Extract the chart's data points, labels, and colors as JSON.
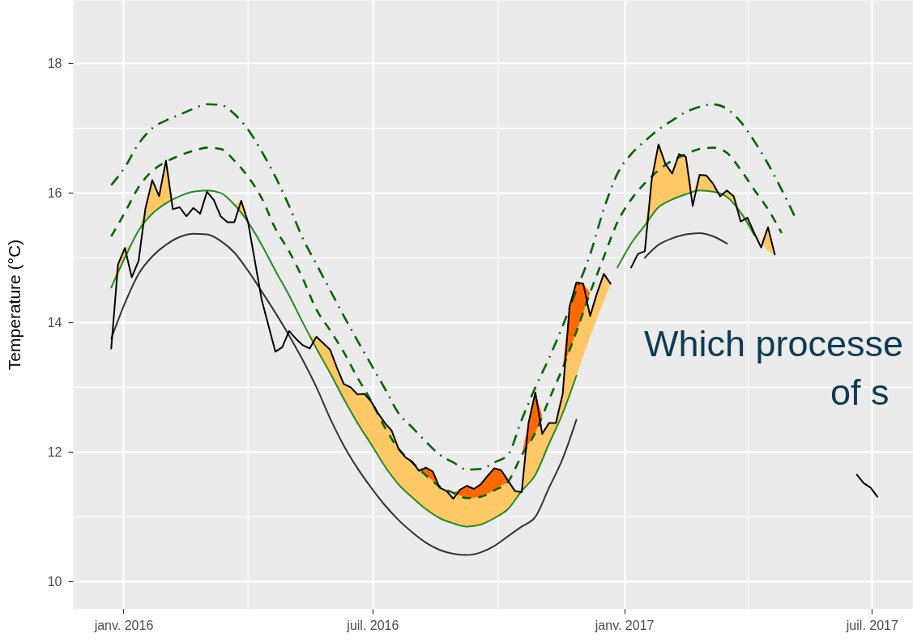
{
  "chart_data": {
    "type": "line",
    "ylabel": "Temperature (°C)",
    "xlim": [
      "2015-11-25",
      "2017-07-31"
    ],
    "ylim": [
      9.58,
      18.98
    ],
    "xticks": [
      {
        "value": "2016-01-01",
        "label": "janv. 2016"
      },
      {
        "value": "2016-07-01",
        "label": "juil. 2016"
      },
      {
        "value": "2017-01-01",
        "label": "janv. 2017"
      },
      {
        "value": "2017-07-01",
        "label": "juil. 2017"
      }
    ],
    "yticks": [
      10,
      12,
      14,
      16,
      18
    ],
    "grid": true,
    "annotations": [
      "Which processe",
      "of s"
    ],
    "x": [
      "2015-12-23",
      "2015-12-28",
      "2016-01-02",
      "2016-01-07",
      "2016-01-12",
      "2016-01-17",
      "2016-01-22",
      "2016-01-27",
      "2016-02-01",
      "2016-02-06",
      "2016-02-11",
      "2016-02-16",
      "2016-02-21",
      "2016-02-26",
      "2016-03-02",
      "2016-03-07",
      "2016-03-12",
      "2016-03-17",
      "2016-03-22",
      "2016-03-27",
      "2016-04-01",
      "2016-04-06",
      "2016-04-11",
      "2016-04-16",
      "2016-04-21",
      "2016-04-26",
      "2016-05-01",
      "2016-05-06",
      "2016-05-11",
      "2016-05-16",
      "2016-05-21",
      "2016-05-26",
      "2016-05-31",
      "2016-06-05",
      "2016-06-10",
      "2016-06-15",
      "2016-06-20",
      "2016-06-25",
      "2016-06-30",
      "2016-07-05",
      "2016-07-10",
      "2016-07-15",
      "2016-07-20",
      "2016-07-25",
      "2016-07-30",
      "2016-08-04",
      "2016-08-09",
      "2016-08-14",
      "2016-08-19",
      "2016-08-24",
      "2016-08-29",
      "2016-09-03",
      "2016-09-08",
      "2016-09-13",
      "2016-09-18",
      "2016-09-23",
      "2016-09-28",
      "2016-10-03",
      "2016-10-08",
      "2016-10-13",
      "2016-10-18",
      "2016-10-23",
      "2016-10-28",
      "2016-11-02",
      "2016-11-07",
      "2016-11-12",
      "2016-11-17",
      "2016-11-22",
      "2016-11-27",
      "2016-12-02",
      "2016-12-07",
      "2016-12-12",
      "2016-12-17",
      "2016-12-22",
      "2016-12-27",
      "2017-01-01",
      "2017-01-06",
      "2017-01-11",
      "2017-01-16",
      "2017-01-21",
      "2017-01-26",
      "2017-01-31",
      "2017-02-05",
      "2017-02-10",
      "2017-02-15",
      "2017-02-20",
      "2017-02-25",
      "2017-03-02",
      "2017-03-07",
      "2017-03-12",
      "2017-03-17",
      "2017-03-22",
      "2017-03-27",
      "2017-04-01",
      "2017-04-06",
      "2017-04-11",
      "2017-04-16",
      "2017-04-21",
      "2017-04-26",
      "2017-05-01",
      "2017-05-06",
      "2017-05-11",
      "2017-05-16",
      "2017-05-21",
      "2017-05-26",
      "2017-05-31",
      "2017-06-05",
      "2017-06-10",
      "2017-06-15",
      "2017-06-20",
      "2017-06-25",
      "2017-06-30",
      "2017-07-05"
    ],
    "series": [
      {
        "type": "area",
        "color": "#ffc866",
        "values": [
          null,
          null,
          null,
          null,
          null,
          null,
          null,
          null,
          null,
          null,
          null,
          null,
          null,
          null,
          null,
          null,
          null,
          null,
          null,
          null,
          null,
          null,
          null,
          null,
          null,
          null,
          null,
          null,
          null,
          null,
          null,
          null,
          null,
          null,
          null,
          null,
          null,
          null,
          null,
          null,
          null,
          null,
          null,
          null,
          null,
          null,
          null,
          null,
          null,
          null,
          null,
          null,
          null,
          null,
          null,
          null,
          null,
          null,
          null,
          null,
          null,
          null,
          null,
          null,
          null,
          null,
          null,
          null,
          null,
          null,
          null,
          null,
          null,
          null,
          null,
          null,
          null,
          null,
          null,
          null,
          null,
          null,
          null,
          null,
          null,
          null,
          null,
          null,
          null,
          null,
          null,
          null,
          null,
          null,
          null,
          null,
          null,
          null,
          null,
          null,
          null,
          null,
          null,
          null,
          null,
          null,
          null,
          null,
          null,
          null,
          null,
          null,
          null
        ],
        "upper": [
          14.54,
          14.9,
          15.15,
          15.21,
          15.42,
          15.76,
          16.2,
          15.95,
          16.5,
          15.9,
          null,
          null,
          null,
          null,
          null,
          null,
          null,
          null,
          15.82,
          15.88,
          15.55,
          null,
          null,
          null,
          null,
          null,
          null,
          null,
          null,
          13.8,
          13.78,
          13.68,
          13.58,
          13.3,
          13.05,
          13.0,
          12.89,
          12.9,
          12.78,
          12.6,
          12.45,
          12.33,
          12.05,
          11.92,
          11.85,
          11.71,
          11.76,
          11.7,
          11.45,
          11.4,
          11.28,
          11.42,
          11.48,
          11.43,
          11.5,
          11.63,
          11.75,
          11.72,
          11.56,
          11.4,
          11.4,
          12.45,
          12.92,
          12.28,
          12.45,
          12.45,
          12.9,
          14.25,
          14.62,
          14.6,
          14.1,
          14.45,
          14.75,
          14.6,
          null,
          null,
          null,
          null,
          15.5,
          16.2,
          16.75,
          16.45,
          16.3,
          16.6,
          16.56,
          16.01,
          16.28,
          16.27,
          16.14,
          15.98,
          16.04,
          15.95,
          15.7,
          15.62,
          15.38,
          15.25,
          15.47,
          15.05,
          null,
          null,
          null,
          null,
          null,
          null,
          null,
          null,
          null,
          null,
          null,
          null,
          null,
          null,
          null
        ],
        "lower": [
          14.54,
          14.77,
          15.0,
          15.21,
          15.42,
          15.55,
          15.68,
          15.76,
          15.84,
          15.9,
          null,
          null,
          null,
          null,
          null,
          null,
          null,
          null,
          15.82,
          15.69,
          15.55,
          null,
          null,
          null,
          null,
          null,
          null,
          null,
          null,
          13.8,
          13.6,
          13.41,
          13.22,
          13.02,
          12.82,
          12.64,
          12.45,
          12.29,
          12.12,
          11.95,
          11.78,
          11.64,
          11.5,
          11.4,
          11.3,
          11.21,
          11.12,
          11.05,
          10.98,
          10.94,
          10.9,
          10.88,
          10.85,
          10.87,
          10.88,
          10.93,
          10.98,
          11.05,
          11.12,
          11.26,
          11.4,
          11.53,
          11.65,
          11.89,
          12.13,
          12.37,
          12.6,
          12.89,
          13.18,
          13.48,
          13.78,
          14.05,
          14.33,
          14.59,
          null,
          null,
          null,
          null,
          15.5,
          15.64,
          15.78,
          15.84,
          15.9,
          15.94,
          15.98,
          16.01,
          16.04,
          16.03,
          16.02,
          15.98,
          15.94,
          15.82,
          15.7,
          15.53,
          15.35,
          15.25,
          15.1,
          15.05,
          null,
          null,
          null,
          null,
          null,
          null,
          null,
          null,
          null,
          null,
          null,
          null,
          null,
          null,
          null
        ]
      },
      {
        "type": "area",
        "color": "#ff6900",
        "values": [
          null,
          null,
          null,
          null,
          null,
          null,
          null,
          null,
          null,
          null,
          null,
          null,
          null,
          null,
          null,
          null,
          null,
          null,
          null,
          null,
          null,
          null,
          null,
          null,
          null,
          null,
          null,
          null,
          null,
          null,
          null,
          null,
          null,
          null,
          null,
          null,
          null,
          null,
          null,
          null,
          null,
          null,
          null,
          null,
          null,
          null,
          null,
          null,
          null,
          null,
          null,
          null,
          null,
          null,
          null,
          null,
          null,
          null,
          null,
          null,
          null,
          null,
          null,
          null,
          null,
          null,
          null,
          null,
          null,
          null,
          null,
          null,
          null,
          null,
          null,
          null,
          null,
          null,
          null,
          null,
          null,
          null,
          null,
          null,
          null,
          null,
          null,
          null,
          null,
          null,
          null,
          null,
          null,
          null,
          null,
          null,
          null,
          null,
          null,
          null,
          null,
          null,
          null,
          null,
          null,
          null,
          null,
          null,
          null,
          null,
          null,
          null,
          null
        ],
        "upper": [
          null,
          null,
          null,
          null,
          null,
          null,
          null,
          null,
          null,
          null,
          null,
          null,
          null,
          null,
          null,
          null,
          null,
          null,
          null,
          null,
          null,
          null,
          null,
          null,
          null,
          null,
          null,
          null,
          null,
          null,
          null,
          null,
          null,
          null,
          null,
          null,
          null,
          null,
          null,
          null,
          null,
          null,
          null,
          null,
          null,
          11.74,
          11.76,
          11.7,
          11.47,
          null,
          11.37,
          11.42,
          11.48,
          11.43,
          11.5,
          11.63,
          11.75,
          11.72,
          11.56,
          11.75,
          11.95,
          12.45,
          12.92,
          12.56,
          null,
          null,
          13.3,
          14.25,
          14.62,
          14.6,
          14.46,
          null,
          null,
          null,
          null,
          null,
          null,
          null,
          null,
          null,
          null,
          null,
          null,
          null,
          null,
          null,
          null,
          null,
          null,
          null,
          null,
          null,
          null,
          null,
          null,
          null,
          null,
          null,
          null,
          null,
          null,
          null,
          null,
          null,
          null,
          null,
          null,
          null,
          null,
          null,
          null,
          null,
          null
        ],
        "lower": [
          null,
          null,
          null,
          null,
          null,
          null,
          null,
          null,
          null,
          null,
          null,
          null,
          null,
          null,
          null,
          null,
          null,
          null,
          null,
          null,
          null,
          null,
          null,
          null,
          null,
          null,
          null,
          null,
          null,
          null,
          null,
          null,
          null,
          null,
          null,
          null,
          null,
          null,
          null,
          null,
          null,
          null,
          null,
          null,
          null,
          11.74,
          11.64,
          11.56,
          11.47,
          null,
          11.37,
          11.33,
          11.29,
          11.3,
          11.31,
          11.36,
          11.41,
          11.48,
          11.54,
          11.75,
          11.95,
          12.13,
          12.3,
          12.56,
          null,
          null,
          13.3,
          13.58,
          13.86,
          14.16,
          14.46,
          null,
          null,
          null,
          null,
          null,
          null,
          null,
          null,
          null,
          null,
          null,
          null,
          null,
          null,
          null,
          null,
          null,
          null,
          null,
          null,
          null,
          null,
          null,
          null,
          null,
          null,
          null,
          null,
          null,
          null,
          null,
          null,
          null,
          null,
          null,
          null,
          null,
          null,
          null,
          null,
          null,
          null
        ]
      },
      {
        "color": "#333333",
        "x": [
          "2015-12-23",
          "2016-01-02",
          "2016-01-12",
          "2016-01-22",
          "2016-02-01",
          "2016-02-11",
          "2016-02-21",
          "2016-03-02",
          "2016-03-12",
          "2016-03-22",
          "2016-04-01",
          "2016-04-11",
          "2016-04-21",
          "2016-05-01",
          "2016-05-11",
          "2016-05-21",
          "2016-05-31",
          "2016-06-10",
          "2016-06-20",
          "2016-06-30",
          "2016-07-10",
          "2016-07-20",
          "2016-07-30",
          "2016-08-09",
          "2016-08-19",
          "2016-08-29",
          "2016-09-08",
          "2016-09-18",
          "2016-09-28",
          "2016-10-08",
          "2016-10-18",
          "2016-10-28",
          "2016-11-07",
          "2016-11-17",
          "2016-11-27",
          "2016-12-07",
          "2016-12-17",
          "2016-12-27",
          "2017-01-06",
          "2017-01-16",
          "2017-01-26",
          "2017-02-05",
          "2017-02-15",
          "2017-02-25",
          "2017-03-07",
          "2017-03-17"
        ],
        "values": [
          13.75,
          14.3,
          14.75,
          15.02,
          15.2,
          15.32,
          15.37,
          15.36,
          15.26,
          15.08,
          14.8,
          14.48,
          14.15,
          13.8,
          13.42,
          13.0,
          12.52,
          12.1,
          11.75,
          11.45,
          11.18,
          10.95,
          10.76,
          10.6,
          10.49,
          10.43,
          10.41,
          10.45,
          10.55,
          10.7,
          10.85,
          11.0,
          11.45,
          11.9,
          12.5,
          null,
          null,
          null,
          null,
          15.0,
          15.2,
          15.3,
          15.36,
          15.38,
          15.33,
          15.22
        ]
      },
      {
        "color": "#228b22",
        "x": [
          "2015-12-23",
          "2016-01-02",
          "2016-01-12",
          "2016-01-22",
          "2016-02-01",
          "2016-02-11",
          "2016-02-21",
          "2016-03-02",
          "2016-03-12",
          "2016-03-22",
          "2016-04-01",
          "2016-04-11",
          "2016-04-21",
          "2016-05-01",
          "2016-05-11",
          "2016-05-21",
          "2016-05-31",
          "2016-06-10",
          "2016-06-20",
          "2016-06-30",
          "2016-07-10",
          "2016-07-20",
          "2016-07-30",
          "2016-08-09",
          "2016-08-19",
          "2016-08-29",
          "2016-09-08",
          "2016-09-18",
          "2016-09-28",
          "2016-10-08",
          "2016-10-18",
          "2016-10-28",
          "2016-11-07",
          "2016-11-17",
          "2016-11-27",
          "2016-12-07",
          "2016-12-17",
          "2016-12-27",
          "2017-01-06",
          "2017-01-16",
          "2017-01-26",
          "2017-02-05",
          "2017-02-15",
          "2017-02-25",
          "2017-03-07",
          "2017-03-17",
          "2017-03-27",
          "2017-04-06"
        ],
        "values": [
          14.54,
          15.0,
          15.42,
          15.68,
          15.84,
          15.95,
          16.02,
          16.04,
          16.0,
          15.82,
          15.55,
          15.2,
          14.8,
          14.42,
          14.0,
          13.6,
          13.22,
          12.82,
          12.45,
          12.12,
          11.78,
          11.5,
          11.3,
          11.12,
          10.98,
          10.9,
          10.85,
          10.88,
          10.98,
          11.12,
          11.4,
          11.65,
          12.13,
          12.6,
          13.18,
          null,
          null,
          14.85,
          15.22,
          15.5,
          15.78,
          15.9,
          15.98,
          16.04,
          16.02,
          15.94,
          15.7,
          15.35
        ]
      },
      {
        "color": "#006400",
        "line_style": "dashed",
        "x": [
          "2015-12-23",
          "2016-01-02",
          "2016-01-12",
          "2016-01-22",
          "2016-02-01",
          "2016-02-11",
          "2016-02-21",
          "2016-03-02",
          "2016-03-12",
          "2016-03-22",
          "2016-04-01",
          "2016-04-11",
          "2016-04-21",
          "2016-05-01",
          "2016-05-11",
          "2016-05-21",
          "2016-05-31",
          "2016-06-10",
          "2016-06-20",
          "2016-06-30",
          "2016-07-10",
          "2016-07-20",
          "2016-07-30",
          "2016-08-09",
          "2016-08-19",
          "2016-08-29",
          "2016-09-08",
          "2016-09-18",
          "2016-09-28",
          "2016-10-08",
          "2016-10-18",
          "2016-10-28",
          "2016-11-07",
          "2016-11-17",
          "2016-11-27",
          "2016-12-07",
          "2016-12-17",
          "2016-12-27",
          "2017-01-06",
          "2017-01-16",
          "2017-01-26",
          "2017-02-05",
          "2017-02-15",
          "2017-02-25",
          "2017-03-07",
          "2017-03-17",
          "2017-03-27",
          "2017-04-06",
          "2017-04-16",
          "2017-04-26"
        ],
        "values": [
          15.33,
          15.7,
          16.09,
          16.34,
          16.48,
          16.58,
          16.65,
          16.7,
          16.68,
          16.5,
          16.25,
          15.92,
          15.45,
          15.1,
          14.68,
          14.2,
          13.88,
          13.54,
          13.15,
          12.79,
          12.38,
          12.05,
          11.84,
          11.64,
          11.47,
          11.37,
          11.29,
          11.31,
          11.41,
          11.54,
          11.95,
          12.3,
          12.81,
          13.3,
          13.86,
          14.46,
          15.01,
          15.55,
          15.9,
          16.15,
          16.35,
          16.5,
          16.6,
          16.68,
          16.7,
          16.62,
          16.36,
          16.05,
          15.75,
          15.38
        ]
      },
      {
        "color": "#006400",
        "line_style": "dashdot",
        "x": [
          "2015-12-23",
          "2016-01-02",
          "2016-01-12",
          "2016-01-22",
          "2016-02-01",
          "2016-02-11",
          "2016-02-21",
          "2016-03-02",
          "2016-03-12",
          "2016-03-22",
          "2016-04-01",
          "2016-04-11",
          "2016-04-21",
          "2016-05-01",
          "2016-05-11",
          "2016-05-21",
          "2016-05-31",
          "2016-06-10",
          "2016-06-20",
          "2016-06-30",
          "2016-07-10",
          "2016-07-20",
          "2016-07-30",
          "2016-08-09",
          "2016-08-19",
          "2016-08-29",
          "2016-09-08",
          "2016-09-18",
          "2016-09-28",
          "2016-10-08",
          "2016-10-18",
          "2016-10-28",
          "2016-11-07",
          "2016-11-17",
          "2016-11-27",
          "2016-12-07",
          "2016-12-17",
          "2016-12-27",
          "2017-01-06",
          "2017-01-16",
          "2017-01-26",
          "2017-02-05",
          "2017-02-15",
          "2017-02-25",
          "2017-03-07",
          "2017-03-17",
          "2017-03-27",
          "2017-04-06",
          "2017-04-16",
          "2017-04-26",
          "2017-05-06"
        ],
        "values": [
          16.12,
          16.4,
          16.76,
          17.0,
          17.12,
          17.21,
          17.3,
          17.37,
          17.36,
          17.22,
          16.98,
          16.64,
          16.25,
          15.8,
          15.3,
          14.9,
          14.5,
          14.1,
          13.72,
          13.35,
          12.98,
          12.6,
          12.38,
          12.16,
          11.96,
          11.84,
          11.73,
          11.74,
          11.84,
          11.96,
          12.5,
          13.0,
          13.45,
          13.95,
          14.5,
          15.05,
          15.75,
          16.3,
          16.6,
          16.8,
          16.98,
          17.12,
          17.25,
          17.33,
          17.37,
          17.3,
          17.1,
          16.8,
          16.45,
          16.05,
          15.62
        ]
      },
      {
        "color": "#000000",
        "values": [
          13.6,
          14.9,
          15.15,
          14.7,
          14.95,
          15.76,
          16.2,
          15.95,
          16.5,
          15.75,
          15.78,
          15.64,
          15.77,
          15.68,
          16.02,
          15.89,
          15.64,
          15.55,
          15.55,
          15.88,
          15.55,
          14.95,
          14.35,
          13.95,
          13.55,
          13.62,
          13.87,
          13.75,
          13.65,
          13.6,
          13.78,
          13.68,
          13.58,
          13.3,
          13.05,
          13.0,
          12.89,
          12.9,
          12.78,
          12.6,
          12.45,
          12.33,
          12.05,
          11.92,
          11.85,
          11.71,
          11.76,
          11.7,
          11.45,
          11.4,
          11.28,
          11.42,
          11.48,
          11.43,
          11.5,
          11.63,
          11.75,
          11.72,
          11.56,
          11.4,
          11.38,
          12.45,
          12.92,
          12.28,
          12.45,
          12.45,
          12.9,
          14.25,
          14.62,
          14.6,
          14.1,
          14.45,
          14.75,
          14.6,
          null,
          null,
          14.85,
          15.06,
          15.1,
          16.2,
          16.75,
          16.45,
          16.3,
          16.6,
          16.56,
          15.8,
          16.28,
          16.27,
          16.14,
          15.95,
          16.04,
          15.95,
          15.56,
          15.62,
          15.38,
          15.16,
          15.47,
          15.05,
          null,
          null,
          null,
          null,
          null,
          null,
          null,
          null,
          null,
          null,
          null,
          11.65,
          11.52,
          11.45,
          11.31
        ]
      }
    ]
  }
}
